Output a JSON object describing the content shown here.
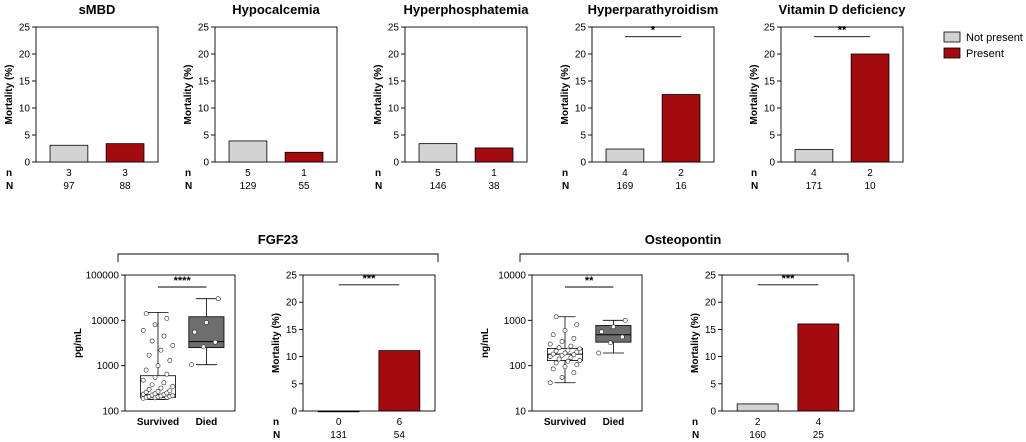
{
  "colors": {
    "not_present": "#d3d3d3",
    "present": "#a30b0f",
    "died_box": "#6e6e6e",
    "survived_box": "#ffffff",
    "axis": "#000000"
  },
  "legend": {
    "not_present": "Not present",
    "present": "Present"
  },
  "row_labels": {
    "n": "n",
    "N": "N"
  },
  "groups": {
    "fgf23": "FGF23",
    "osteopontin": "Osteopontin"
  },
  "chart_data": [
    {
      "id": "smbd",
      "type": "bar",
      "title": "sMBD",
      "ylabel": "Mortality (%)",
      "ylim": [
        0,
        25
      ],
      "yticks": [
        "0",
        "5",
        "10",
        "15",
        "20",
        "25"
      ],
      "categories": [
        "Not present",
        "Present"
      ],
      "values": [
        3.1,
        3.4
      ],
      "n": [
        "3",
        "3"
      ],
      "N": [
        "97",
        "88"
      ],
      "sig": ""
    },
    {
      "id": "hypocalcemia",
      "type": "bar",
      "title": "Hypocalcemia",
      "ylabel": "Mortality (%)",
      "ylim": [
        0,
        25
      ],
      "yticks": [
        "0",
        "5",
        "10",
        "15",
        "20",
        "25"
      ],
      "categories": [
        "Not present",
        "Present"
      ],
      "values": [
        3.9,
        1.8
      ],
      "n": [
        "5",
        "1"
      ],
      "N": [
        "129",
        "55"
      ],
      "sig": ""
    },
    {
      "id": "hyperphosphatemia",
      "type": "bar",
      "title": "Hyperphosphatemia",
      "ylabel": "Mortality (%)",
      "ylim": [
        0,
        25
      ],
      "yticks": [
        "0",
        "5",
        "10",
        "15",
        "20",
        "25"
      ],
      "categories": [
        "Not present",
        "Present"
      ],
      "values": [
        3.4,
        2.6
      ],
      "n": [
        "5",
        "1"
      ],
      "N": [
        "146",
        "38"
      ],
      "sig": ""
    },
    {
      "id": "hyperparathyroidism",
      "type": "bar",
      "title": "Hyperparathyroidism",
      "ylabel": "Mortality (%)",
      "ylim": [
        0,
        25
      ],
      "yticks": [
        "0",
        "5",
        "10",
        "15",
        "20",
        "25"
      ],
      "categories": [
        "Not present",
        "Present"
      ],
      "values": [
        2.4,
        12.5
      ],
      "n": [
        "4",
        "2"
      ],
      "N": [
        "169",
        "16"
      ],
      "sig": "*"
    },
    {
      "id": "vitamind",
      "type": "bar",
      "title": "Vitamin D deficiency",
      "ylabel": "Mortality (%)",
      "ylim": [
        0,
        25
      ],
      "yticks": [
        "0",
        "5",
        "10",
        "15",
        "20",
        "25"
      ],
      "categories": [
        "Not present",
        "Present"
      ],
      "values": [
        2.3,
        20.0
      ],
      "n": [
        "4",
        "2"
      ],
      "N": [
        "171",
        "10"
      ],
      "sig": "**"
    },
    {
      "id": "fgf23-box",
      "type": "box",
      "title": "",
      "ylabel": "pg/mL",
      "scale": "log",
      "ylim": [
        100,
        100000
      ],
      "yticks": [
        "100",
        "1000",
        "10000",
        "100000"
      ],
      "categories": [
        "Survived",
        "Died"
      ],
      "boxes": [
        {
          "name": "Survived",
          "min": 180,
          "q1": 200,
          "median": 230,
          "q3": 600,
          "max": 15000,
          "points": [
            190,
            195,
            200,
            200,
            205,
            210,
            210,
            215,
            220,
            225,
            230,
            235,
            240,
            250,
            260,
            270,
            280,
            300,
            320,
            350,
            380,
            420,
            480,
            550,
            650,
            800,
            1000,
            1300,
            1700,
            2200,
            2800,
            3500,
            4500,
            6000,
            8000,
            11000,
            14000
          ]
        },
        {
          "name": "Died",
          "min": 1050,
          "q1": 2500,
          "median": 3400,
          "q3": 12000,
          "max": 30000,
          "points": [
            1050,
            2600,
            3300,
            5500,
            9000,
            30000
          ]
        }
      ],
      "sig": "****"
    },
    {
      "id": "fgf23-bar",
      "type": "bar",
      "title": "",
      "ylabel": "Mortality (%)",
      "ylim": [
        0,
        25
      ],
      "yticks": [
        "0",
        "5",
        "10",
        "15",
        "20",
        "25"
      ],
      "categories": [
        "Not present",
        "Present"
      ],
      "values": [
        0.0,
        11.1
      ],
      "n": [
        "0",
        "6"
      ],
      "N": [
        "131",
        "54"
      ],
      "sig": "***"
    },
    {
      "id": "opn-box",
      "type": "box",
      "title": "",
      "ylabel": "ng/mL",
      "scale": "log",
      "ylim": [
        10,
        10000
      ],
      "yticks": [
        "10",
        "100",
        "1000",
        "10000"
      ],
      "categories": [
        "Survived",
        "Died"
      ],
      "boxes": [
        {
          "name": "Survived",
          "min": 42,
          "q1": 130,
          "median": 180,
          "q3": 240,
          "max": 1200,
          "points": [
            42,
            55,
            70,
            85,
            95,
            105,
            115,
            125,
            130,
            140,
            150,
            160,
            170,
            175,
            180,
            190,
            200,
            210,
            220,
            235,
            250,
            270,
            300,
            340,
            400,
            480,
            600,
            800,
            1200
          ]
        },
        {
          "name": "Died",
          "min": 190,
          "q1": 330,
          "median": 480,
          "q3": 770,
          "max": 1000,
          "points": [
            190,
            320,
            430,
            560,
            720,
            1000
          ]
        }
      ],
      "sig": "**"
    },
    {
      "id": "opn-bar",
      "type": "bar",
      "title": "",
      "ylabel": "Mortality (%)",
      "ylim": [
        0,
        25
      ],
      "yticks": [
        "0",
        "5",
        "10",
        "15",
        "20",
        "25"
      ],
      "categories": [
        "Not present",
        "Present"
      ],
      "values": [
        1.3,
        16.0
      ],
      "n": [
        "2",
        "4"
      ],
      "N": [
        "160",
        "25"
      ],
      "sig": "***"
    }
  ]
}
